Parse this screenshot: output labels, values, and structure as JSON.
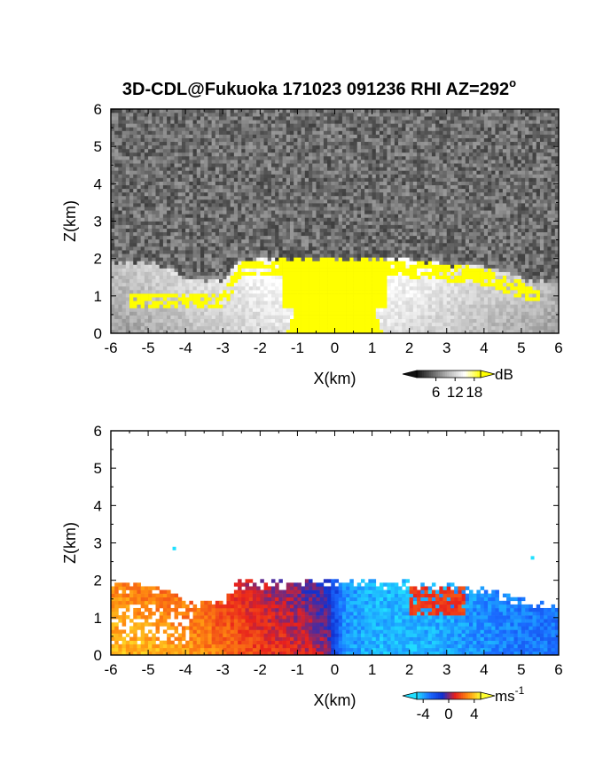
{
  "title": {
    "main": "3D-CDL@Fukuoka 171023 091236 RHI AZ=292",
    "degree": "o"
  },
  "chart_data": [
    {
      "type": "heatmap",
      "panel": "top",
      "variable": "signal intensity",
      "xlabel": "X(km)",
      "ylabel": "Z(km)",
      "xlim": [
        -6,
        6
      ],
      "ylim": [
        0,
        6
      ],
      "x_ticks": [
        "-6",
        "-5",
        "-4",
        "-3",
        "-2",
        "-1",
        "0",
        "1",
        "2",
        "3",
        "4",
        "5",
        "6"
      ],
      "y_ticks": [
        "0",
        "1",
        "2",
        "3",
        "4",
        "5",
        "6"
      ],
      "colorbar": {
        "unit": "dB",
        "ticks": [
          "6",
          "12",
          "18"
        ],
        "tick_values": [
          6,
          12,
          18
        ],
        "range": [
          0,
          20
        ],
        "colors": [
          "#111111",
          "#666666",
          "#bbbbbb",
          "#ffffff",
          "#ffff00"
        ]
      },
      "boundary_top_km": [
        [
          -6,
          1.9
        ],
        [
          -5,
          1.9
        ],
        [
          -4.4,
          1.75
        ],
        [
          -4,
          1.45
        ],
        [
          -3,
          1.4
        ],
        [
          -2.6,
          1.95
        ],
        [
          -1,
          2.0
        ],
        [
          0,
          2.0
        ],
        [
          1,
          2.0
        ],
        [
          2,
          1.95
        ],
        [
          3,
          1.85
        ],
        [
          4,
          1.8
        ],
        [
          5,
          1.45
        ],
        [
          6,
          1.3
        ]
      ],
      "saturated_region_top_km": [
        [
          -3,
          1.1
        ],
        [
          -2.5,
          1.95
        ],
        [
          -1,
          2.0
        ],
        [
          0,
          2.0
        ],
        [
          1,
          2.0
        ],
        [
          2,
          1.95
        ],
        [
          3,
          1.85
        ],
        [
          4,
          1.75
        ],
        [
          5,
          1.4
        ],
        [
          5.9,
          1.15
        ]
      ],
      "background_noise": true
    },
    {
      "type": "heatmap",
      "panel": "bottom",
      "variable": "radial velocity",
      "xlabel": "X(km)",
      "ylabel": "Z(km)",
      "xlim": [
        -6,
        6
      ],
      "ylim": [
        0,
        6
      ],
      "x_ticks": [
        "-6",
        "-5",
        "-4",
        "-3",
        "-2",
        "-1",
        "0",
        "1",
        "2",
        "3",
        "4",
        "5",
        "6"
      ],
      "y_ticks": [
        "0",
        "1",
        "2",
        "3",
        "4",
        "5",
        "6"
      ],
      "colorbar": {
        "unit": "ms",
        "unit_exp": "-1",
        "ticks": [
          "-4",
          "0",
          "4"
        ],
        "tick_values": [
          -4,
          0,
          4
        ],
        "range": [
          -5,
          5
        ],
        "colors": [
          "#20e0ff",
          "#1a6cff",
          "#1030d0",
          "#e8201c",
          "#ff8c10",
          "#ffff30"
        ]
      },
      "echo_top_km": [
        [
          -6,
          1.9
        ],
        [
          -5,
          1.85
        ],
        [
          -4.4,
          1.75
        ],
        [
          -4,
          1.4
        ],
        [
          -3,
          1.5
        ],
        [
          -2.6,
          1.95
        ],
        [
          -1,
          2.0
        ],
        [
          0,
          2.0
        ],
        [
          1,
          2.0
        ],
        [
          2,
          1.95
        ],
        [
          3,
          1.9
        ],
        [
          4,
          1.8
        ],
        [
          5,
          1.5
        ],
        [
          6,
          1.25
        ]
      ],
      "velocity_profile": [
        [
          -6,
          4.0
        ],
        [
          -4,
          3.4
        ],
        [
          -3,
          2.6
        ],
        [
          -2,
          1.6
        ],
        [
          -1,
          1.0
        ],
        [
          -0.2,
          0.3
        ],
        [
          0.2,
          -3.5
        ],
        [
          1,
          -4.3
        ],
        [
          2,
          -4.3
        ],
        [
          3,
          -4.0
        ],
        [
          4,
          -3.6
        ],
        [
          5,
          -3.2
        ],
        [
          6,
          -3.0
        ]
      ],
      "positive_patch": {
        "x": [
          2.0,
          3.5
        ],
        "z": [
          1.1,
          1.8
        ],
        "value": 1.5
      },
      "isolated_points": [
        {
          "x": -4.3,
          "z": 2.85,
          "value": -5
        },
        {
          "x": 5.3,
          "z": 2.6,
          "value": -5
        }
      ]
    }
  ]
}
